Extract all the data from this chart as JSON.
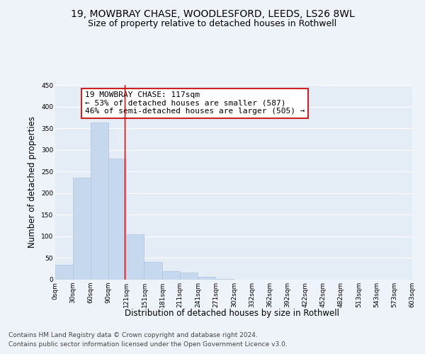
{
  "title": "19, MOWBRAY CHASE, WOODLESFORD, LEEDS, LS26 8WL",
  "subtitle": "Size of property relative to detached houses in Rothwell",
  "xlabel": "Distribution of detached houses by size in Rothwell",
  "ylabel": "Number of detached properties",
  "footnote1": "Contains HM Land Registry data © Crown copyright and database right 2024.",
  "footnote2": "Contains public sector information licensed under the Open Government Licence v3.0.",
  "bar_left_edges": [
    0,
    30,
    60,
    90,
    120,
    150,
    181,
    211,
    241,
    271,
    302,
    332,
    362,
    392,
    422,
    452,
    482,
    513,
    543,
    573
  ],
  "bar_heights": [
    35,
    235,
    363,
    280,
    105,
    41,
    20,
    16,
    6,
    2,
    0,
    0,
    0,
    0,
    0,
    0,
    0,
    0,
    0,
    0
  ],
  "bar_widths": [
    30,
    30,
    30,
    30,
    30,
    31,
    30,
    30,
    30,
    31,
    30,
    30,
    30,
    30,
    30,
    30,
    31,
    30,
    30,
    30
  ],
  "bar_color": "#c5d8ed",
  "bar_edge_color": "#adc4de",
  "property_line_x": 117,
  "property_line_color": "#cc0000",
  "annotation_line1": "19 MOWBRAY CHASE: 117sqm",
  "annotation_line2": "← 53% of detached houses are smaller (587)",
  "annotation_line3": "46% of semi-detached houses are larger (505) →",
  "xlim": [
    0,
    603
  ],
  "ylim": [
    0,
    450
  ],
  "xtick_labels": [
    "0sqm",
    "30sqm",
    "60sqm",
    "90sqm",
    "121sqm",
    "151sqm",
    "181sqm",
    "211sqm",
    "241sqm",
    "271sqm",
    "302sqm",
    "332sqm",
    "362sqm",
    "392sqm",
    "422sqm",
    "452sqm",
    "482sqm",
    "513sqm",
    "543sqm",
    "573sqm",
    "603sqm"
  ],
  "xtick_positions": [
    0,
    30,
    60,
    90,
    120,
    151,
    181,
    211,
    241,
    271,
    302,
    332,
    362,
    392,
    422,
    452,
    482,
    513,
    543,
    573,
    603
  ],
  "ytick_positions": [
    0,
    50,
    100,
    150,
    200,
    250,
    300,
    350,
    400,
    450
  ],
  "background_color": "#eef3f9",
  "plot_bg_color": "#e4edf6",
  "grid_color": "#ffffff",
  "title_fontsize": 10,
  "subtitle_fontsize": 9,
  "tick_fontsize": 6.5,
  "label_fontsize": 8.5,
  "footnote_fontsize": 6.5,
  "ann_fontsize": 8
}
